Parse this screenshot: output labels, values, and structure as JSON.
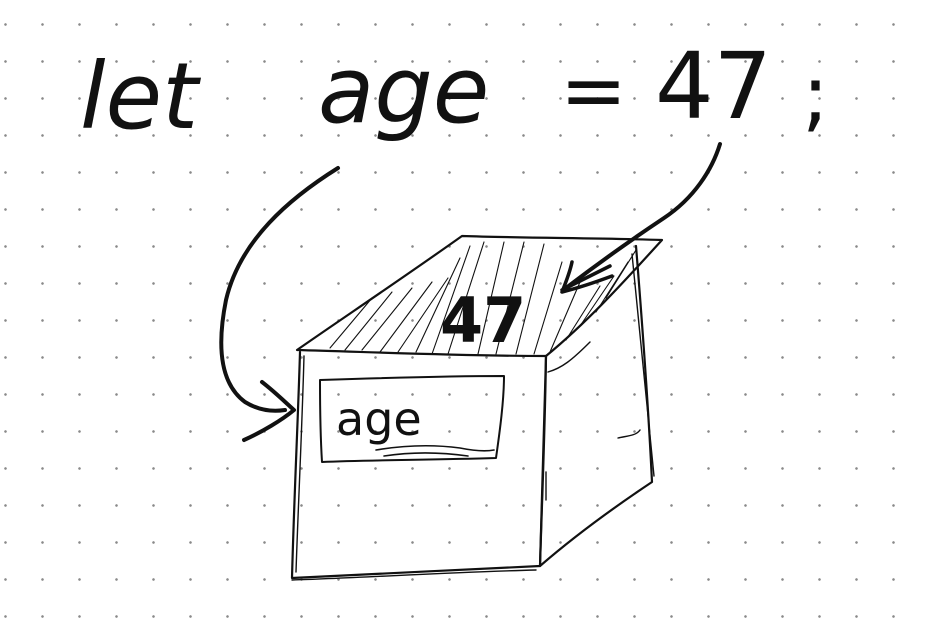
{
  "code_line": {
    "keyword": "let",
    "identifier": "age",
    "operator": "=",
    "value": "47",
    "terminator": ";"
  },
  "box": {
    "label": "age",
    "content": "47"
  },
  "ink_color": "#111111",
  "grid_dot_color": "#8a8a8a"
}
